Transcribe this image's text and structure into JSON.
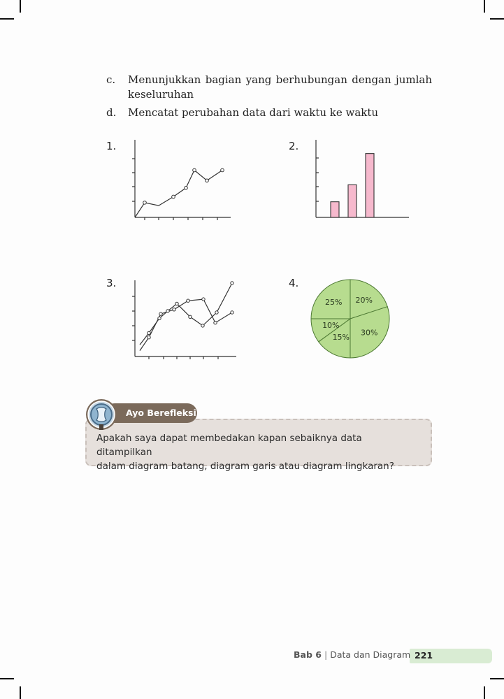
{
  "list_items": [
    {
      "marker": "c.",
      "line1": "Menunjukkan bagian yang berhubungan dengan jumlah",
      "line2": "keseluruhan"
    },
    {
      "marker": "d.",
      "line1": "Mencatat perubahan data dari waktu ke waktu"
    }
  ],
  "figures": {
    "labels": [
      "1.",
      "2.",
      "3.",
      "4."
    ],
    "fig1_line": {
      "type": "line",
      "y": [
        1,
        0.8,
        1.4,
        2,
        3.2,
        2.5,
        3.2
      ]
    },
    "fig2_bar": {
      "type": "bar",
      "values": [
        1.1,
        2.3,
        4.5
      ]
    },
    "fig3_line": {
      "type": "line",
      "series": [
        {
          "y": [
            0.8,
            1.6,
            2.6,
            3.1,
            3.6,
            2.7,
            2.1,
            3.0,
            5.0
          ]
        },
        {
          "y": [
            0.4,
            1.3,
            2.9,
            3.2,
            3.8,
            3.9,
            2.3,
            3.0
          ]
        }
      ]
    },
    "fig4_pie": {
      "type": "pie",
      "slices": [
        {
          "label": "20%",
          "value": 20
        },
        {
          "label": "30%",
          "value": 30
        },
        {
          "label": "15%",
          "value": 15
        },
        {
          "label": "10%",
          "value": 10
        },
        {
          "label": "25%",
          "value": 25
        }
      ],
      "color": "#b7dc8f"
    }
  },
  "reflection": {
    "tab_label": "Ayo Berefleksi",
    "text_line1": "Apakah saya dapat membedakan kapan sebaiknya data ditampilkan",
    "text_line2": "dalam diagram batang, diagram garis atau diagram lingkaran?"
  },
  "footer": {
    "chapter": "Bab 6",
    "separator": "|",
    "title": "Data dan Diagram",
    "page": "221"
  },
  "colors": {
    "bar": "#f6b9cd",
    "pie": "#b7dc8f",
    "reflection_tab": "#7b6a5b",
    "footer_tab": "#d9ecd3"
  }
}
